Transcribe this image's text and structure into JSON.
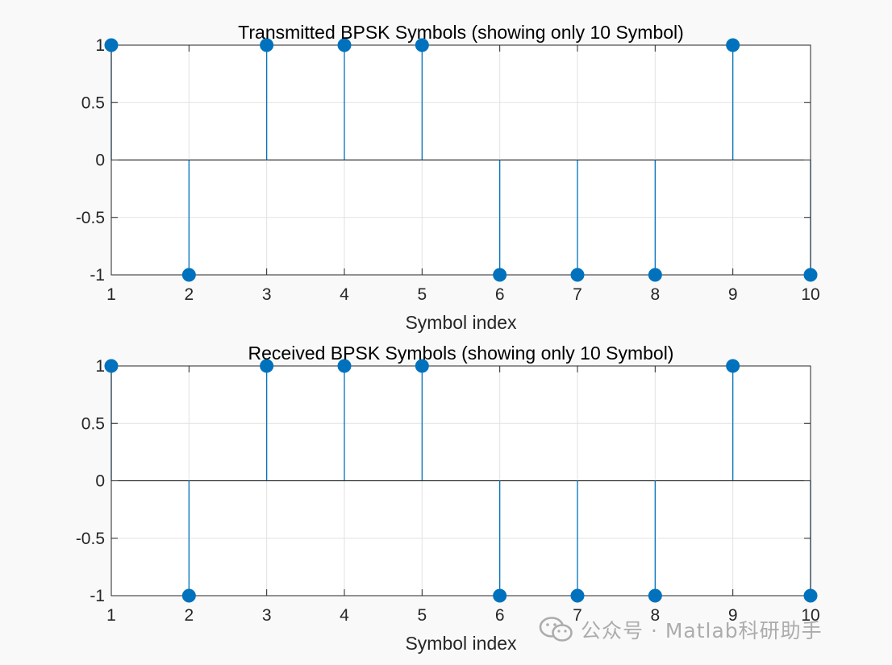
{
  "colors": {
    "stem": "#0072bd",
    "axes": "#262626",
    "grid": "#e2e2e2",
    "background": "#f9f9f9",
    "plot_bg": "#ffffff"
  },
  "watermark": {
    "text": "公众号 · Matlab科研助手",
    "icon": "wechat-icon"
  },
  "chart_data": [
    {
      "type": "stem",
      "title": "Transmitted BPSK Symbols (showing only 10 Symbol)",
      "xlabel": "Symbol index",
      "ylabel": "",
      "x": [
        1,
        2,
        3,
        4,
        5,
        6,
        7,
        8,
        9,
        10
      ],
      "values": [
        1,
        -1,
        1,
        1,
        1,
        -1,
        -1,
        -1,
        1,
        -1
      ],
      "xlim": [
        1,
        10
      ],
      "ylim": [
        -1,
        1
      ],
      "xticks": [
        "1",
        "2",
        "3",
        "4",
        "5",
        "6",
        "7",
        "8",
        "9",
        "10"
      ],
      "yticks": [
        "1",
        "0.5",
        "0",
        "-0.5",
        "-1"
      ],
      "grid": true,
      "legend": null
    },
    {
      "type": "stem",
      "title": "Received BPSK Symbols (showing only 10 Symbol)",
      "xlabel": "Symbol index",
      "ylabel": "",
      "x": [
        1,
        2,
        3,
        4,
        5,
        6,
        7,
        8,
        9,
        10
      ],
      "values": [
        1,
        -1,
        1,
        1,
        1,
        -1,
        -1,
        -1,
        1,
        -1
      ],
      "xlim": [
        1,
        10
      ],
      "ylim": [
        -1,
        1
      ],
      "xticks": [
        "1",
        "2",
        "3",
        "4",
        "5",
        "6",
        "7",
        "8",
        "9",
        "10"
      ],
      "yticks": [
        "1",
        "0.5",
        "0",
        "-0.5",
        "-1"
      ],
      "grid": true,
      "legend": null
    }
  ]
}
